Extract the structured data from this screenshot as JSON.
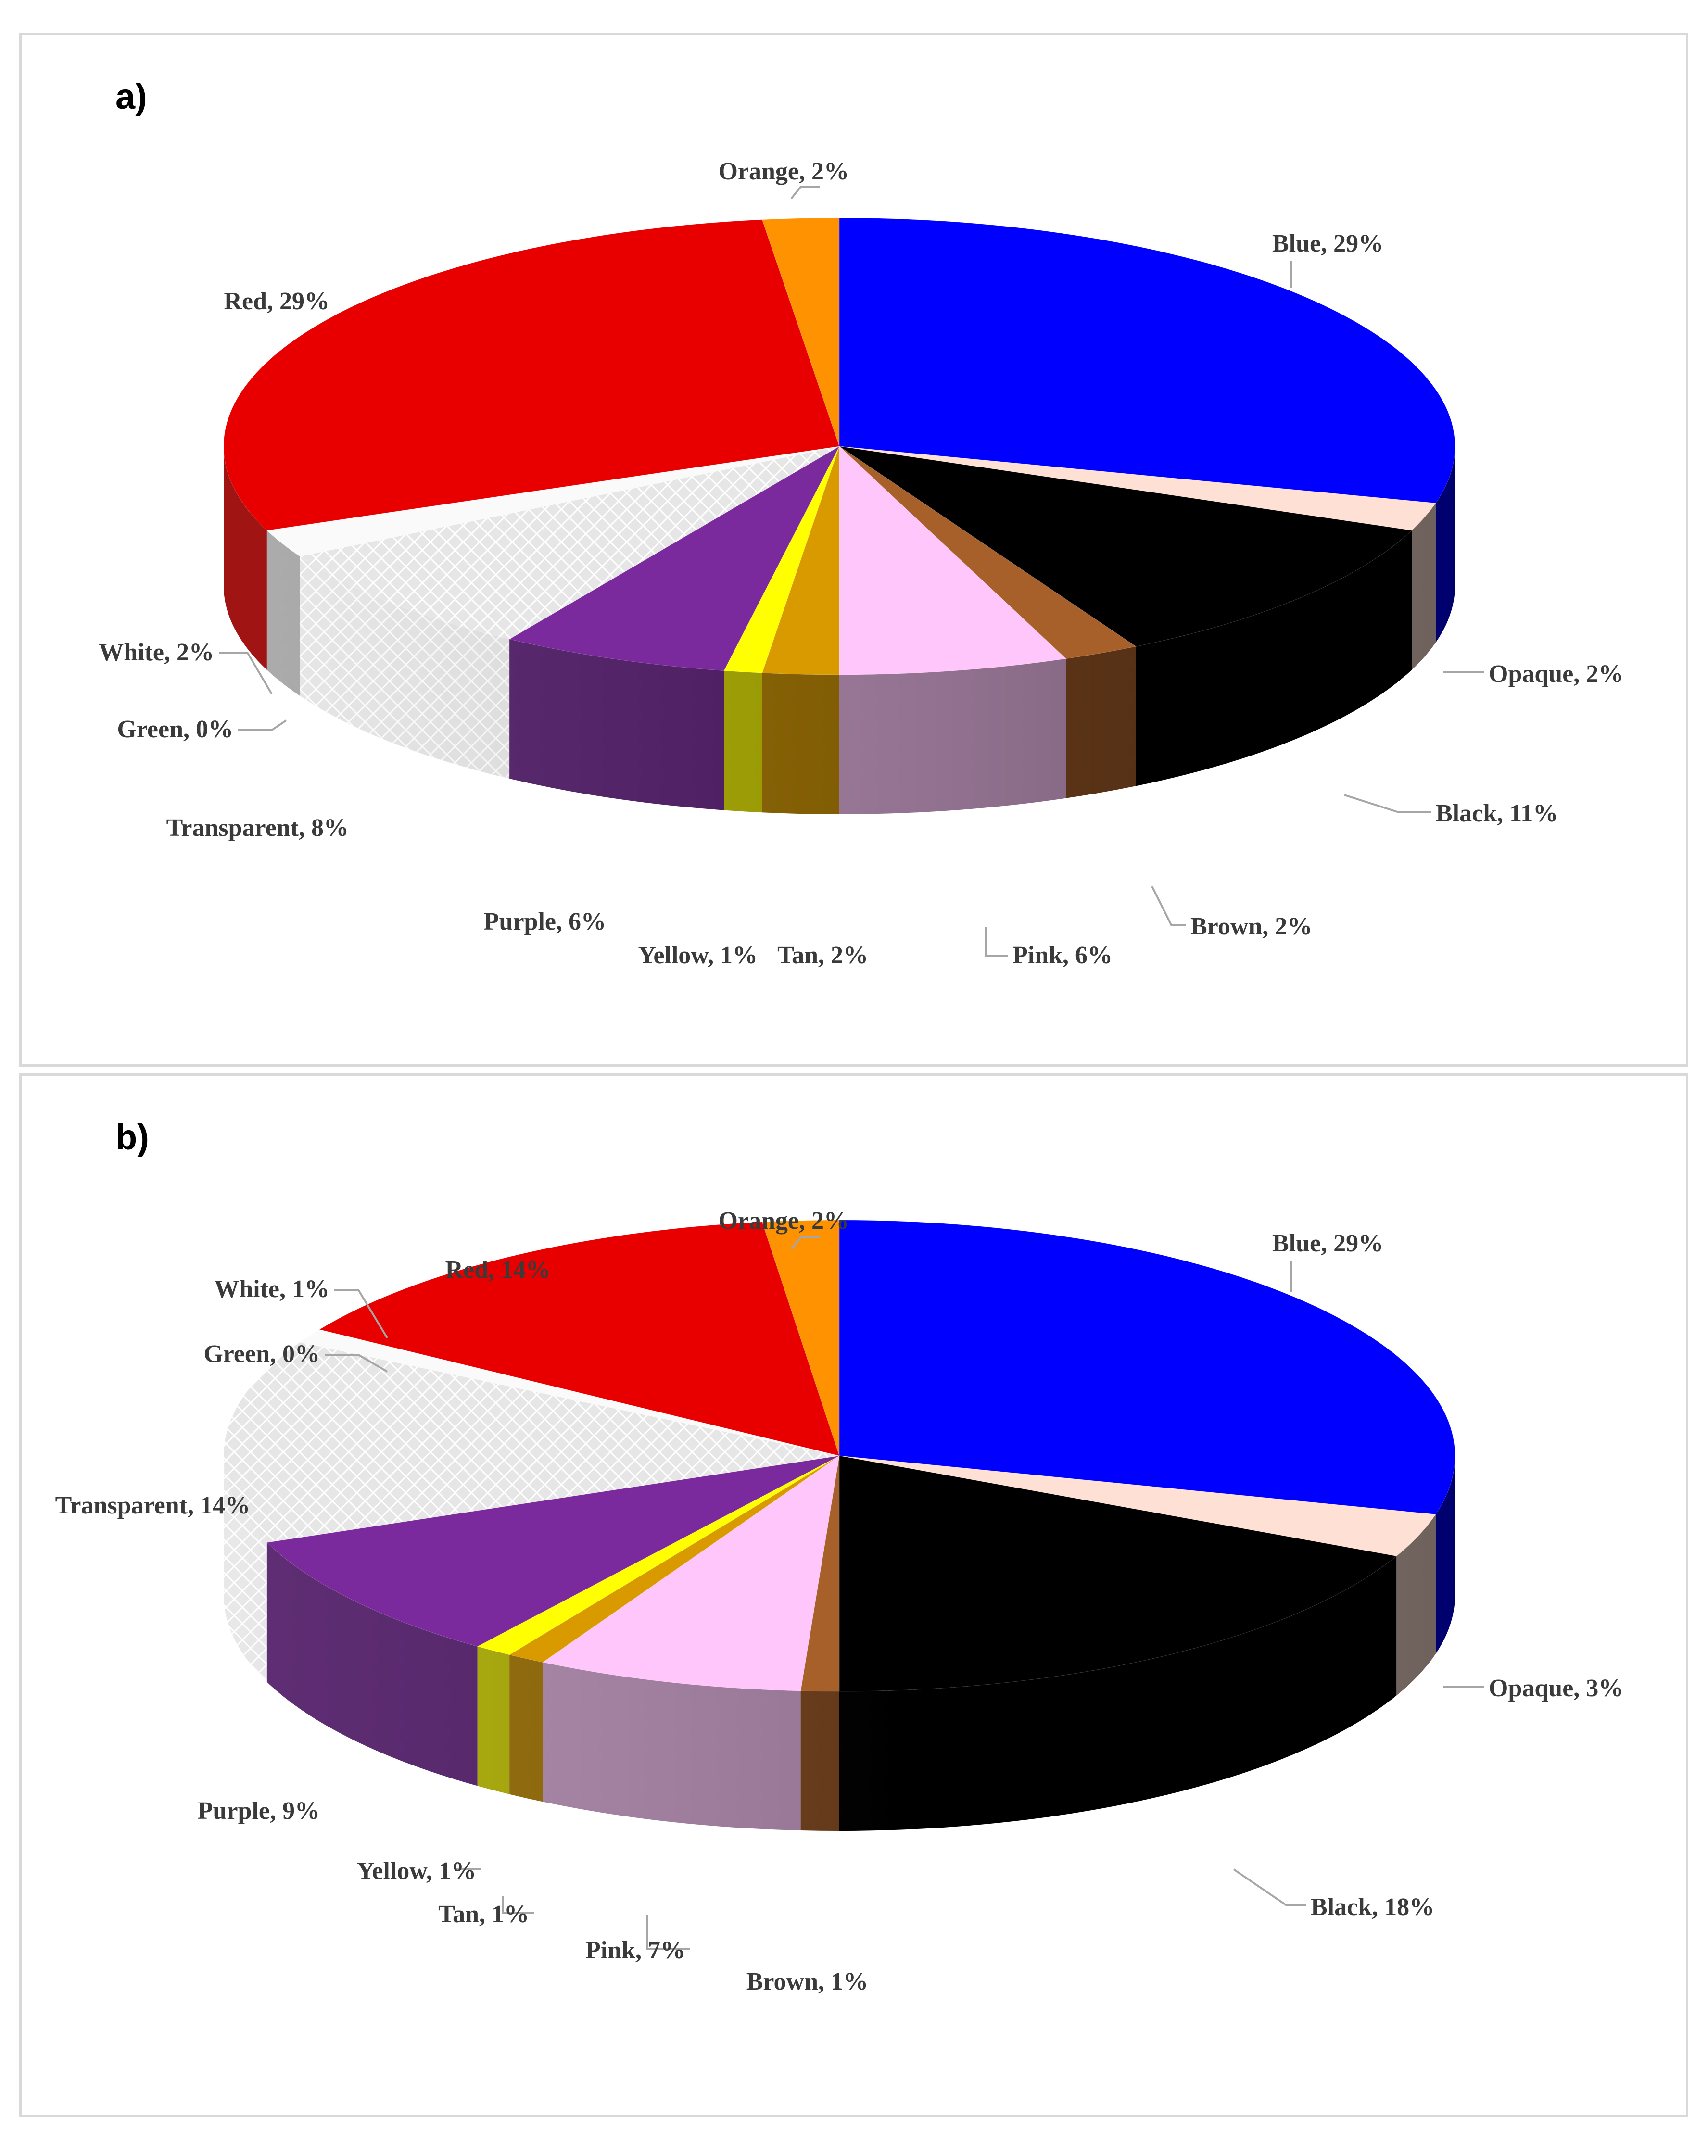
{
  "chart_data": [
    {
      "type": "pie",
      "panel_label": "a)",
      "title": "",
      "style": "3d",
      "legend": "none",
      "slices": [
        {
          "label": "Blue",
          "value": 29,
          "text": "Blue, 29%",
          "color": "#0000ff"
        },
        {
          "label": "Opaque",
          "value": 2,
          "text": "Opaque, 2%",
          "color": "#ffe0d4"
        },
        {
          "label": "Black",
          "value": 11,
          "text": "Black, 11%",
          "color": "#000000"
        },
        {
          "label": "Brown",
          "value": 2,
          "text": "Brown, 2%",
          "color": "#a8602a"
        },
        {
          "label": "Pink",
          "value": 6,
          "text": "Pink, 6%",
          "color": "#ffc6fb"
        },
        {
          "label": "Tan",
          "value": 2,
          "text": "Tan, 2%",
          "color": "#d99a00"
        },
        {
          "label": "Yellow",
          "value": 1,
          "text": "Yellow, 1%",
          "color": "#ffff00"
        },
        {
          "label": "Purple",
          "value": 6,
          "text": "Purple, 6%",
          "color": "#7b2a9e"
        },
        {
          "label": "Transparent",
          "value": 8,
          "text": "Transparent, 8%",
          "color": "#e4e4e4",
          "pattern": "crosshatch"
        },
        {
          "label": "Green",
          "value": 0,
          "text": "Green, 0%",
          "color": "#00a000"
        },
        {
          "label": "White",
          "value": 2,
          "text": "White, 2%",
          "color": "#fafafa"
        },
        {
          "label": "Red",
          "value": 29,
          "text": "Red, 29%",
          "color": "#e80000"
        },
        {
          "label": "Orange",
          "value": 2,
          "text": "Orange, 2%",
          "color": "#ff9200"
        }
      ]
    },
    {
      "type": "pie",
      "panel_label": "b)",
      "title": "",
      "style": "3d",
      "legend": "none",
      "slices": [
        {
          "label": "Blue",
          "value": 29,
          "text": "Blue, 29%",
          "color": "#0000ff"
        },
        {
          "label": "Opaque",
          "value": 3,
          "text": "Opaque, 3%",
          "color": "#ffe0d4"
        },
        {
          "label": "Black",
          "value": 18,
          "text": "Black, 18%",
          "color": "#000000"
        },
        {
          "label": "Brown",
          "value": 1,
          "text": "Brown, 1%",
          "color": "#a8602a"
        },
        {
          "label": "Pink",
          "value": 7,
          "text": "Pink, 7%",
          "color": "#ffc6fb"
        },
        {
          "label": "Tan",
          "value": 1,
          "text": "Tan, 1%",
          "color": "#d99a00"
        },
        {
          "label": "Yellow",
          "value": 1,
          "text": "Yellow, 1%",
          "color": "#ffff00"
        },
        {
          "label": "Purple",
          "value": 9,
          "text": "Purple, 9%",
          "color": "#7b2a9e"
        },
        {
          "label": "Transparent",
          "value": 14,
          "text": "Transparent, 14%",
          "color": "#e4e4e4",
          "pattern": "crosshatch"
        },
        {
          "label": "Green",
          "value": 0,
          "text": "Green, 0%",
          "color": "#00a000"
        },
        {
          "label": "White",
          "value": 1,
          "text": "White, 1%",
          "color": "#fafafa"
        },
        {
          "label": "Red",
          "value": 14,
          "text": "Red, 14%",
          "color": "#e80000"
        },
        {
          "label": "Orange",
          "value": 2,
          "text": "Orange, 2%",
          "color": "#ff9200"
        }
      ]
    }
  ]
}
